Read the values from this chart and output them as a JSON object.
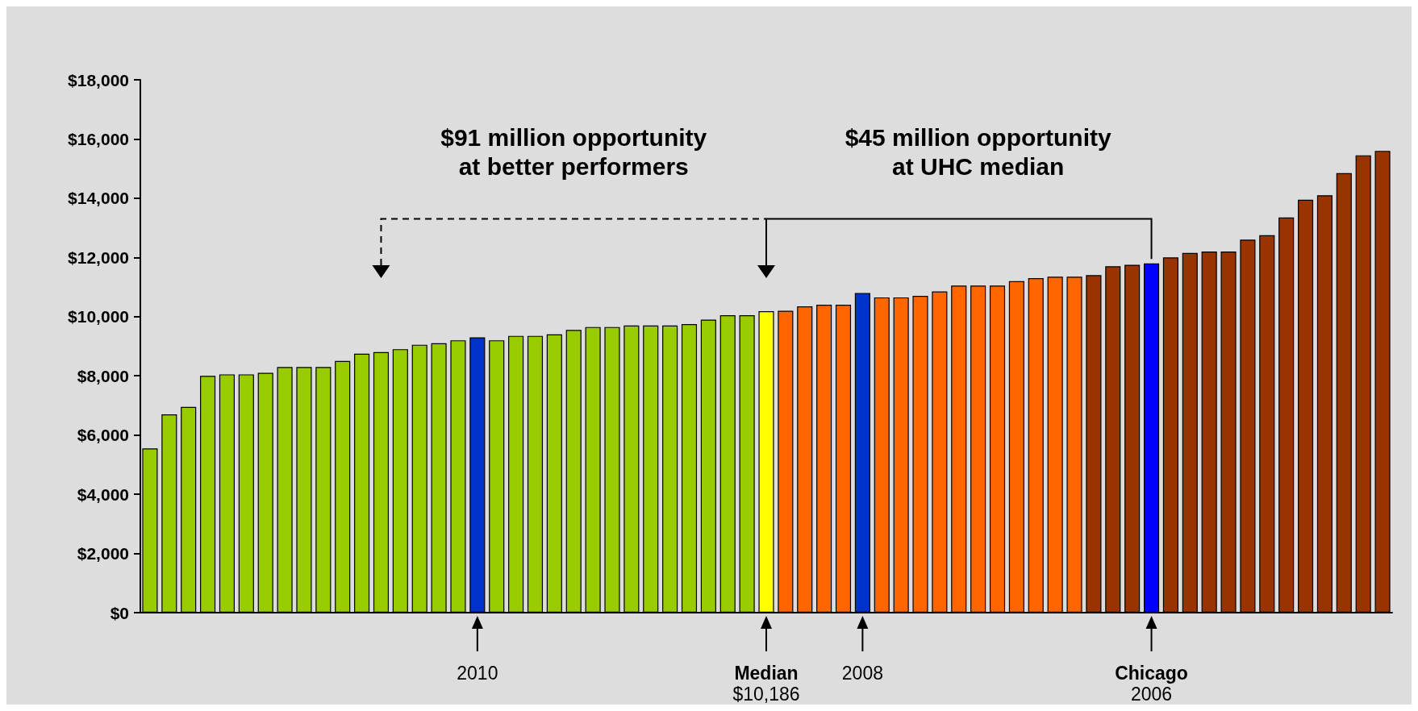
{
  "chart_data": {
    "type": "bar",
    "categories": [
      null,
      null,
      null,
      null,
      null,
      null,
      null,
      null,
      null,
      null,
      null,
      null,
      null,
      null,
      null,
      null,
      null,
      "2010",
      null,
      null,
      null,
      null,
      null,
      null,
      null,
      null,
      null,
      null,
      null,
      null,
      null,
      null,
      "Median\n$10,186",
      null,
      null,
      null,
      null,
      "2008",
      null,
      null,
      null,
      null,
      null,
      null,
      null,
      null,
      null,
      null,
      null,
      null,
      null,
      null,
      "Chicago\n2006",
      null,
      null,
      null,
      null,
      null,
      null,
      null,
      null,
      null,
      null,
      null,
      null
    ],
    "values": [
      5550,
      6700,
      6950,
      8000,
      8050,
      8050,
      8100,
      8300,
      8300,
      8300,
      8500,
      8750,
      8800,
      8900,
      9050,
      9100,
      9200,
      9300,
      9200,
      9350,
      9350,
      9400,
      9550,
      9650,
      9650,
      9700,
      9700,
      9700,
      9750,
      9900,
      10050,
      10050,
      10186,
      10200,
      10350,
      10400,
      10400,
      10800,
      10650,
      10650,
      10700,
      10850,
      11050,
      11050,
      11050,
      11200,
      11300,
      11350,
      11350,
      11400,
      11700,
      11750,
      11800,
      12000,
      12150,
      12200,
      12200,
      12600,
      12750,
      13350,
      13950,
      14100,
      14850,
      15450,
      15600
    ],
    "colors": [
      "#99cc00",
      "#99cc00",
      "#99cc00",
      "#99cc00",
      "#99cc00",
      "#99cc00",
      "#99cc00",
      "#99cc00",
      "#99cc00",
      "#99cc00",
      "#99cc00",
      "#99cc00",
      "#99cc00",
      "#99cc00",
      "#99cc00",
      "#99cc00",
      "#99cc00",
      "#0033cc",
      "#99cc00",
      "#99cc00",
      "#99cc00",
      "#99cc00",
      "#99cc00",
      "#99cc00",
      "#99cc00",
      "#99cc00",
      "#99cc00",
      "#99cc00",
      "#99cc00",
      "#99cc00",
      "#99cc00",
      "#99cc00",
      "#ffff00",
      "#ff6600",
      "#ff6600",
      "#ff6600",
      "#ff6600",
      "#0033cc",
      "#ff6600",
      "#ff6600",
      "#ff6600",
      "#ff6600",
      "#ff6600",
      "#ff6600",
      "#ff6600",
      "#ff6600",
      "#ff6600",
      "#ff6600",
      "#ff6600",
      "#993300",
      "#993300",
      "#993300",
      "#0000ff",
      "#993300",
      "#993300",
      "#993300",
      "#993300",
      "#993300",
      "#993300",
      "#993300",
      "#993300",
      "#993300",
      "#993300",
      "#993300",
      "#993300"
    ],
    "ylim": [
      0,
      18000
    ],
    "yticks": [
      {
        "value": 0,
        "label": "$0"
      },
      {
        "value": 2000,
        "label": "$2,000"
      },
      {
        "value": 4000,
        "label": "$4,000"
      },
      {
        "value": 6000,
        "label": "$6,000"
      },
      {
        "value": 8000,
        "label": "$8,000"
      },
      {
        "value": 10000,
        "label": "$10,000"
      },
      {
        "value": 12000,
        "label": "$12,000"
      },
      {
        "value": 14000,
        "label": "$14,000"
      },
      {
        "value": 16000,
        "label": "$16,000"
      },
      {
        "value": 18000,
        "label": "$18,000"
      }
    ],
    "grid": false,
    "annotations": [
      "$91 million opportunity\nat better performers",
      "$45 million opportunity\nat UHC median"
    ]
  }
}
